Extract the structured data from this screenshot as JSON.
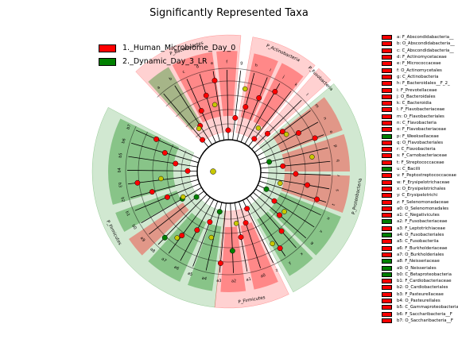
{
  "title": "Significantly Represented Taxa",
  "colors": {
    "Human_Microbiome_Day_0": "#ff0000",
    "Dynamic_Day_3_LR": "#008000",
    "neutral_node": "#c8c800"
  },
  "legend": [
    {
      "label": "1._Human_Microbiome_Day_0",
      "color": "#ff0000"
    },
    {
      "label": "2._Dynamic_Day_3_LR",
      "color": "#008000"
    }
  ],
  "chart_data": {
    "type": "cladogram",
    "classes": [
      "1._Human_Microbiome_Day_0",
      "2._Dynamic_Day_3_LR"
    ],
    "sectors": [
      {
        "label": "P_Bacteroidetes",
        "class": "1._Human_Microbiome_Day_0",
        "from_deg": -43,
        "to_deg": 5
      },
      {
        "label": "P_Actinobacteria",
        "class": "1._Human_Microbiome_Day_0",
        "from_deg": 10,
        "to_deg": 39
      },
      {
        "label": "P_Fusobacteria",
        "class": "1._Human_Microbiome_Day_0",
        "from_deg": 41,
        "to_deg": 48
      },
      {
        "label": "P_Proteobacteria",
        "class": "2._Dynamic_Day_3_LR",
        "from_deg": 50,
        "to_deg": 152
      },
      {
        "label": "P_Firmicutes",
        "class": "2._Dynamic_Day_3_LR",
        "from_deg": 186,
        "to_deg": 298
      },
      {
        "label": "P_Firmicutes",
        "class": "1._Human_Microbiome_Day_0",
        "from_deg": 154,
        "to_deg": 186
      }
    ],
    "clades": [
      {
        "id": "a",
        "name": "F_Abscondidabacteria__",
        "class": "1._Human_Microbiome_Day_0"
      },
      {
        "id": "b",
        "name": "O_Abscondidabacteria__",
        "class": "1._Human_Microbiome_Day_0"
      },
      {
        "id": "c",
        "name": "C_Abscondidabacteria__",
        "class": "1._Human_Microbiome_Day_0"
      },
      {
        "id": "d",
        "name": "F_Actinomycetaceae",
        "class": "1._Human_Microbiome_Day_0"
      },
      {
        "id": "e",
        "name": "F_Micrococcaceae",
        "class": "1._Human_Microbiome_Day_0"
      },
      {
        "id": "f",
        "name": "O_Actinomycetales",
        "class": "1._Human_Microbiome_Day_0"
      },
      {
        "id": "g",
        "name": "C_Actinobacteria",
        "class": "1._Human_Microbiome_Day_0"
      },
      {
        "id": "h",
        "name": "F_Bacteroidales__F_2_",
        "class": "1._Human_Microbiome_Day_0"
      },
      {
        "id": "i",
        "name": "F_Prevotellaceae",
        "class": "1._Human_Microbiome_Day_0"
      },
      {
        "id": "j",
        "name": "O_Bacteroidales",
        "class": "1._Human_Microbiome_Day_0"
      },
      {
        "id": "k",
        "name": "C_Bacteroidia",
        "class": "1._Human_Microbiome_Day_0"
      },
      {
        "id": "l",
        "name": "F_Flavobacteriaceae",
        "class": "1._Human_Microbiome_Day_0"
      },
      {
        "id": "m",
        "name": "O_Flavobacteriales",
        "class": "1._Human_Microbiome_Day_0"
      },
      {
        "id": "n",
        "name": "C_Flavobacteria",
        "class": "1._Human_Microbiome_Day_0"
      },
      {
        "id": "o",
        "name": "F_Flavobacteriaceae",
        "class": "1._Human_Microbiome_Day_0"
      },
      {
        "id": "p",
        "name": "F_Weeksellaceae",
        "class": "2._Dynamic_Day_3_LR"
      },
      {
        "id": "q",
        "name": "O_Flavobacteriales",
        "class": "1._Human_Microbiome_Day_0"
      },
      {
        "id": "r",
        "name": "C_Flavobacteria",
        "class": "1._Human_Microbiome_Day_0"
      },
      {
        "id": "s",
        "name": "F_Carnobacteriaceae",
        "class": "1._Human_Microbiome_Day_0"
      },
      {
        "id": "t",
        "name": "F_Streptococcaceae",
        "class": "1._Human_Microbiome_Day_0"
      },
      {
        "id": "u",
        "name": "C_Bacilli",
        "class": "2._Dynamic_Day_3_LR"
      },
      {
        "id": "v",
        "name": "F_Peptostreptococcaceae",
        "class": "1._Human_Microbiome_Day_0"
      },
      {
        "id": "w",
        "name": "F_Erysipelotrichaceae",
        "class": "1._Human_Microbiome_Day_0"
      },
      {
        "id": "x",
        "name": "O_Erysipelotrichales",
        "class": "1._Human_Microbiome_Day_0"
      },
      {
        "id": "y",
        "name": "C_Erysipelotrichi",
        "class": "1._Human_Microbiome_Day_0"
      },
      {
        "id": "z",
        "name": "F_Selenomonadaceae",
        "class": "1._Human_Microbiome_Day_0"
      },
      {
        "id": "a0",
        "name": "O_Selenomonadales",
        "class": "1._Human_Microbiome_Day_0"
      },
      {
        "id": "a1",
        "name": "C_Negativicutes",
        "class": "1._Human_Microbiome_Day_0"
      },
      {
        "id": "a2",
        "name": "F_Fusobacteriaceae",
        "class": "2._Dynamic_Day_3_LR"
      },
      {
        "id": "a3",
        "name": "F_Leptotrichiaceae",
        "class": "1._Human_Microbiome_Day_0"
      },
      {
        "id": "a4",
        "name": "O_Fusobacteriales",
        "class": "2._Dynamic_Day_3_LR"
      },
      {
        "id": "a5",
        "name": "C_Fusobacteriia",
        "class": "1._Human_Microbiome_Day_0"
      },
      {
        "id": "a6",
        "name": "F_Burkholderiaceae",
        "class": "1._Human_Microbiome_Day_0"
      },
      {
        "id": "a7",
        "name": "O_Burkholderiales",
        "class": "1._Human_Microbiome_Day_0"
      },
      {
        "id": "a8",
        "name": "F_Neisseriaceae",
        "class": "2._Dynamic_Day_3_LR"
      },
      {
        "id": "a9",
        "name": "O_Neisseriales",
        "class": "2._Dynamic_Day_3_LR"
      },
      {
        "id": "b0",
        "name": "C_Betaproteobacteria",
        "class": "2._Dynamic_Day_3_LR"
      },
      {
        "id": "b1",
        "name": "F_Cardiobacteriaceae",
        "class": "1._Human_Microbiome_Day_0"
      },
      {
        "id": "b2",
        "name": "O_Cardiobacteriales",
        "class": "1._Human_Microbiome_Day_0"
      },
      {
        "id": "b3",
        "name": "F_Pasteurellaceae",
        "class": "1._Human_Microbiome_Day_0"
      },
      {
        "id": "b4",
        "name": "O_Pasteurellales",
        "class": "1._Human_Microbiome_Day_0"
      },
      {
        "id": "b5",
        "name": "C_Gammaproteobacteria",
        "class": "1._Human_Microbiome_Day_0"
      },
      {
        "id": "b6",
        "name": "F_Saccharibacteria__F",
        "class": "1._Human_Microbiome_Day_0"
      },
      {
        "id": "b7",
        "name": "O_Saccharibacteria__F",
        "class": "1._Human_Microbiome_Day_0"
      }
    ]
  }
}
